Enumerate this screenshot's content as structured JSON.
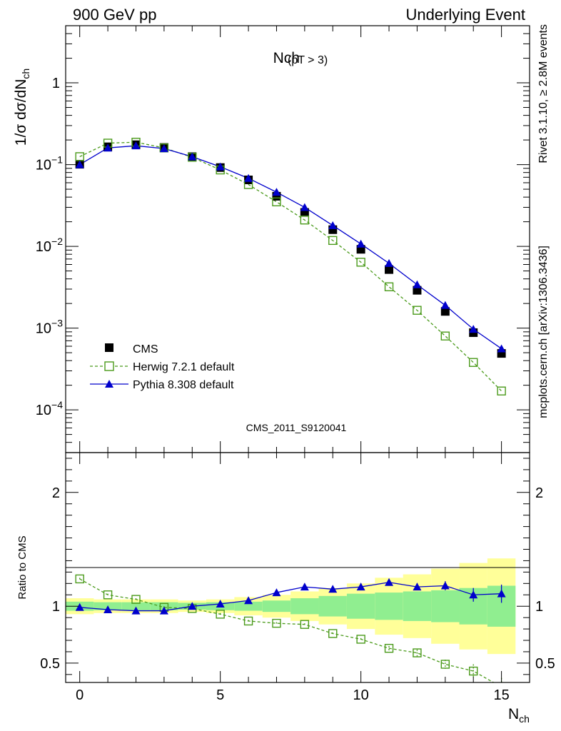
{
  "header": {
    "left": "900 GeV pp",
    "right": "Underlying Event"
  },
  "side": {
    "rivet": "Rivet 3.1.10, ≥ 2.8M events",
    "mcplots": "mcplots.cern.ch [arXiv:1306.3436]"
  },
  "chart_data": [
    {
      "type": "scatter",
      "title": "Nch",
      "title_sub": "(pT >  3)",
      "ylabel_main": "1/σ dσ/dN",
      "ylabel_sub": "ch",
      "xlabel_main": "N",
      "xlabel_sub": "ch",
      "watermark": "CMS_2011_S9120041",
      "yscale": "log",
      "xlim": [
        -0.5,
        16
      ],
      "ylim": [
        3e-05,
        5
      ],
      "x_ticks": [
        "0",
        "5",
        "10",
        "15"
      ],
      "y_ticks": [
        {
          "base": "1",
          "exp": ""
        },
        {
          "base": "10",
          "exp": "−1"
        },
        {
          "base": "10",
          "exp": "−2"
        },
        {
          "base": "10",
          "exp": "−3"
        },
        {
          "base": "10",
          "exp": "−4"
        }
      ],
      "legend_position": "bottom-left",
      "x": [
        0,
        1,
        2,
        3,
        4,
        5,
        6,
        7,
        8,
        9,
        10,
        11,
        12,
        13,
        14,
        15
      ],
      "series": [
        {
          "name": "CMS",
          "color": "#000000",
          "marker": "square",
          "values": [
            0.101,
            0.165,
            0.175,
            0.162,
            0.125,
            0.092,
            0.065,
            0.041,
            0.026,
            0.016,
            0.0092,
            0.0052,
            0.0029,
            0.0016,
            0.00088,
            0.00049
          ]
        },
        {
          "name": "Herwig 7.2.1 default",
          "color": "#4a9a1a",
          "marker": "open-square",
          "line": "dashed",
          "values": [
            0.125,
            0.183,
            0.188,
            0.16,
            0.123,
            0.086,
            0.057,
            0.035,
            0.021,
            0.0118,
            0.0064,
            0.0032,
            0.00165,
            0.0008,
            0.00038,
            0.00017
          ]
        },
        {
          "name": "Pythia 8.308 default",
          "color": "#0000cc",
          "marker": "triangle",
          "line": "solid",
          "values": [
            0.1,
            0.16,
            0.17,
            0.157,
            0.125,
            0.094,
            0.068,
            0.046,
            0.03,
            0.018,
            0.0107,
            0.0062,
            0.0034,
            0.0019,
            0.00097,
            0.00056
          ]
        }
      ]
    },
    {
      "type": "scatter",
      "ylabel": "Ratio to CMS",
      "xlim": [
        -0.5,
        16
      ],
      "ylim": [
        0.33,
        2.35
      ],
      "y_ticks": [
        "0.5",
        "1",
        "2"
      ],
      "band_colors": {
        "inner": "#90ee90",
        "outer": "#ffff99"
      },
      "bands_x": [
        -0.5,
        0.5,
        1.5,
        2.5,
        3.5,
        4.5,
        5.5,
        6.5,
        7.5,
        8.5,
        9.5,
        10.5,
        11.5,
        12.5,
        13.5,
        14.5,
        15.5
      ],
      "band_inner": [
        0.04,
        0.035,
        0.035,
        0.035,
        0.03,
        0.035,
        0.04,
        0.05,
        0.07,
        0.09,
        0.11,
        0.12,
        0.13,
        0.14,
        0.16,
        0.18
      ],
      "band_outer": [
        0.07,
        0.06,
        0.06,
        0.06,
        0.05,
        0.06,
        0.08,
        0.1,
        0.13,
        0.16,
        0.2,
        0.25,
        0.28,
        0.33,
        0.38,
        0.42
      ],
      "series": [
        {
          "name": "Herwig 7.2.1 default",
          "values": [
            1.24,
            1.1,
            1.06,
            0.99,
            0.98,
            0.93,
            0.87,
            0.85,
            0.84,
            0.76,
            0.71,
            0.63,
            0.59,
            0.49,
            0.43,
            0.29
          ],
          "errors": [
            0.01,
            0.01,
            0.01,
            0.01,
            0.01,
            0.01,
            0.01,
            0.01,
            0.01,
            0.01,
            0.01,
            0.02,
            0.03,
            0.04,
            0.06,
            0.08
          ]
        },
        {
          "name": "Pythia 8.308 default",
          "values": [
            0.99,
            0.97,
            0.96,
            0.96,
            1.0,
            1.02,
            1.05,
            1.12,
            1.17,
            1.15,
            1.17,
            1.21,
            1.17,
            1.18,
            1.1,
            1.11
          ],
          "errors": [
            0.01,
            0.01,
            0.01,
            0.01,
            0.01,
            0.01,
            0.01,
            0.01,
            0.01,
            0.01,
            0.015,
            0.02,
            0.03,
            0.04,
            0.06,
            0.08
          ]
        }
      ]
    }
  ]
}
